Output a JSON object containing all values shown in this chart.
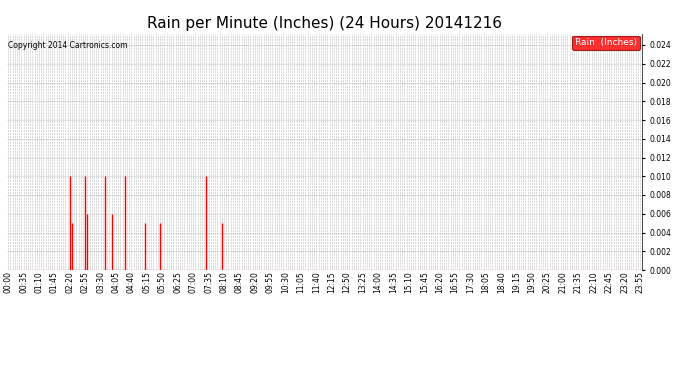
{
  "title": "Rain per Minute (Inches) (24 Hours) 20141216",
  "copyright_text": "Copyright 2014 Cartronics.com",
  "legend_label": "Rain  (Inches)",
  "ylim": [
    0.0,
    0.0252
  ],
  "yticks": [
    0.0,
    0.002,
    0.004,
    0.006,
    0.008,
    0.01,
    0.012,
    0.014,
    0.016,
    0.018,
    0.02,
    0.022,
    0.024
  ],
  "bar_color": "#ff0000",
  "baseline_color": "#ff0000",
  "background_color": "#ffffff",
  "grid_color": "#b0b0b0",
  "title_fontsize": 11,
  "tick_fontsize": 5.5,
  "total_minutes": 1440,
  "rain_data": {
    "140": 0.01,
    "145": 0.005,
    "175": 0.01,
    "180": 0.006,
    "220": 0.01,
    "235": 0.006,
    "265": 0.01,
    "310": 0.005,
    "345": 0.005,
    "450": 0.01,
    "485": 0.005
  },
  "xtick_label_interval": 35,
  "xlabel_rotation": 90,
  "figwidth": 6.9,
  "figheight": 3.75,
  "dpi": 100
}
